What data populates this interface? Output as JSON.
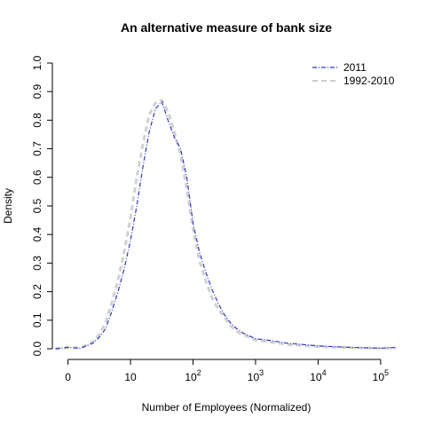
{
  "chart_data": {
    "type": "line",
    "title": "An alternative measure of bank size",
    "xlabel": "Number of Employees (Normalized)",
    "ylabel": "Density",
    "x_scale": "log10",
    "xlim_log10": [
      -0.25,
      5.3
    ],
    "ylim": [
      0,
      1.0
    ],
    "x_ticks": [
      {
        "value_log10": 0,
        "base": "0",
        "exp": ""
      },
      {
        "value_log10": 1,
        "base": "10",
        "exp": ""
      },
      {
        "value_log10": 2,
        "base": "10",
        "exp": "2"
      },
      {
        "value_log10": 3,
        "base": "10",
        "exp": "3"
      },
      {
        "value_log10": 4,
        "base": "10",
        "exp": "4"
      },
      {
        "value_log10": 5,
        "base": "10",
        "exp": "5"
      }
    ],
    "y_ticks": [
      "0.0",
      "0.1",
      "0.2",
      "0.3",
      "0.4",
      "0.5",
      "0.6",
      "0.7",
      "0.8",
      "0.9",
      "1.0"
    ],
    "grid": false,
    "legend_position": "top-right",
    "colors": {
      "2011": "#3333cc",
      "1992-2010": "#cccccc"
    },
    "series": [
      {
        "name": "2011",
        "x_log10": [
          -0.2,
          0,
          0.2,
          0.4,
          0.5,
          0.6,
          0.7,
          0.8,
          0.9,
          1.0,
          1.1,
          1.2,
          1.3,
          1.4,
          1.5,
          1.6,
          1.7,
          1.8,
          1.9,
          2.0,
          2.1,
          2.2,
          2.3,
          2.4,
          2.5,
          2.6,
          2.7,
          2.8,
          2.9,
          3.0,
          3.2,
          3.5,
          4.0,
          4.5,
          5.0,
          5.25
        ],
        "y": [
          0,
          0.005,
          0.002,
          0.02,
          0.04,
          0.07,
          0.13,
          0.2,
          0.28,
          0.38,
          0.5,
          0.64,
          0.76,
          0.84,
          0.865,
          0.8,
          0.74,
          0.7,
          0.6,
          0.44,
          0.34,
          0.27,
          0.21,
          0.16,
          0.12,
          0.09,
          0.07,
          0.055,
          0.045,
          0.035,
          0.03,
          0.02,
          0.01,
          0.005,
          0.002,
          0.005
        ]
      },
      {
        "name": "1992-2010",
        "x_log10": [
          -0.2,
          0,
          0.2,
          0.4,
          0.5,
          0.6,
          0.7,
          0.8,
          0.9,
          1.0,
          1.1,
          1.2,
          1.3,
          1.4,
          1.5,
          1.6,
          1.7,
          1.8,
          1.9,
          2.0,
          2.1,
          2.2,
          2.3,
          2.4,
          2.5,
          2.6,
          2.7,
          2.8,
          2.9,
          3.0,
          3.2,
          3.5,
          4.0,
          4.5,
          5.0,
          5.25
        ],
        "y": [
          0,
          0.004,
          0.003,
          0.025,
          0.05,
          0.09,
          0.16,
          0.24,
          0.34,
          0.46,
          0.6,
          0.72,
          0.82,
          0.86,
          0.87,
          0.83,
          0.76,
          0.68,
          0.56,
          0.42,
          0.31,
          0.24,
          0.18,
          0.14,
          0.11,
          0.08,
          0.06,
          0.05,
          0.04,
          0.03,
          0.025,
          0.015,
          0.008,
          0.004,
          0.002,
          0.003
        ]
      }
    ]
  }
}
